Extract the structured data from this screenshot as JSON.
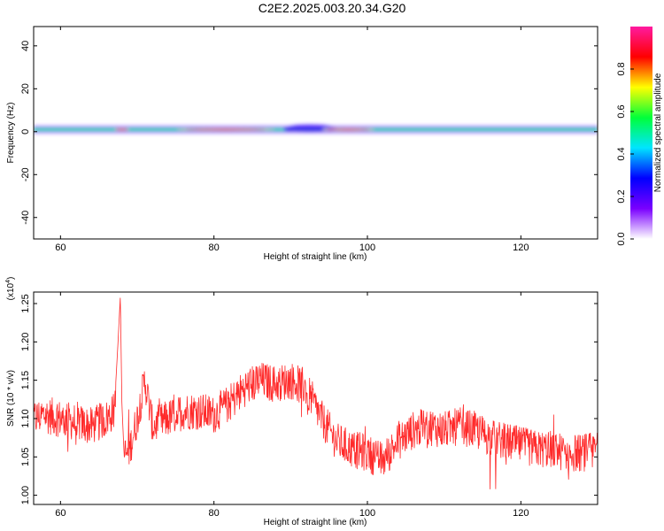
{
  "figure": {
    "title": "C2E2.2025.003.20.34.G20"
  },
  "chart_data": [
    {
      "type": "heatmap",
      "xlabel": "Height of straight line (km)",
      "ylabel": "Frequency (Hz)",
      "xlim": [
        56.5,
        130
      ],
      "ylim": [
        -50,
        49
      ],
      "xticks": [
        60,
        80,
        100,
        120
      ],
      "yticks": [
        -40,
        -20,
        0,
        20,
        40
      ],
      "colorbar": {
        "label": "Normalized spectral amplitude",
        "range": [
          0,
          1
        ],
        "ticks": [
          "0.0",
          "0.2",
          "0.4",
          "0.6",
          "0.8"
        ],
        "colors": [
          "#ffffff",
          "#7a00ff",
          "#0000ff",
          "#00e5ff",
          "#00ff3a",
          "#ffff00",
          "#ff0000",
          "#ff1aa0"
        ]
      },
      "band_center_hz": 1,
      "intense_segments_km": [
        [
          67,
          69
        ],
        [
          75,
          88
        ],
        [
          94,
          101
        ]
      ],
      "wide_segments_km": [
        [
          89,
          96
        ]
      ]
    },
    {
      "type": "line",
      "xlabel": "Height of straight line (km)",
      "ylabel": "SNR (10 * v/v)",
      "yscale_label": "(x10^4)",
      "xlim": [
        56.5,
        130
      ],
      "ylim": [
        0.988,
        1.265
      ],
      "xticks": [
        60,
        80,
        100,
        120
      ],
      "yticks": [
        "1.00",
        "1.05",
        "1.10",
        "1.15",
        "1.20",
        "1.25"
      ],
      "color": "#ff2a2a",
      "series": [
        {
          "x": [
            56.5,
            58,
            60,
            62,
            64,
            66,
            67,
            67.5,
            67.8,
            68,
            68.3,
            69,
            70,
            71,
            72,
            74,
            76,
            78,
            80,
            82,
            84,
            86,
            88,
            90,
            92,
            94,
            96,
            98,
            100,
            102,
            104,
            106,
            108,
            110,
            112,
            114,
            116,
            118,
            120,
            122,
            124,
            126,
            128,
            130
          ],
          "y": [
            1.1,
            1.105,
            1.1,
            1.095,
            1.09,
            1.1,
            1.11,
            1.2,
            1.26,
            1.12,
            1.05,
            1.06,
            1.1,
            1.15,
            1.09,
            1.1,
            1.11,
            1.11,
            1.105,
            1.12,
            1.14,
            1.15,
            1.145,
            1.15,
            1.14,
            1.1,
            1.07,
            1.06,
            1.055,
            1.045,
            1.07,
            1.085,
            1.09,
            1.085,
            1.09,
            1.085,
            1.075,
            1.07,
            1.065,
            1.06,
            1.06,
            1.055,
            1.055,
            1.06
          ]
        }
      ]
    }
  ]
}
